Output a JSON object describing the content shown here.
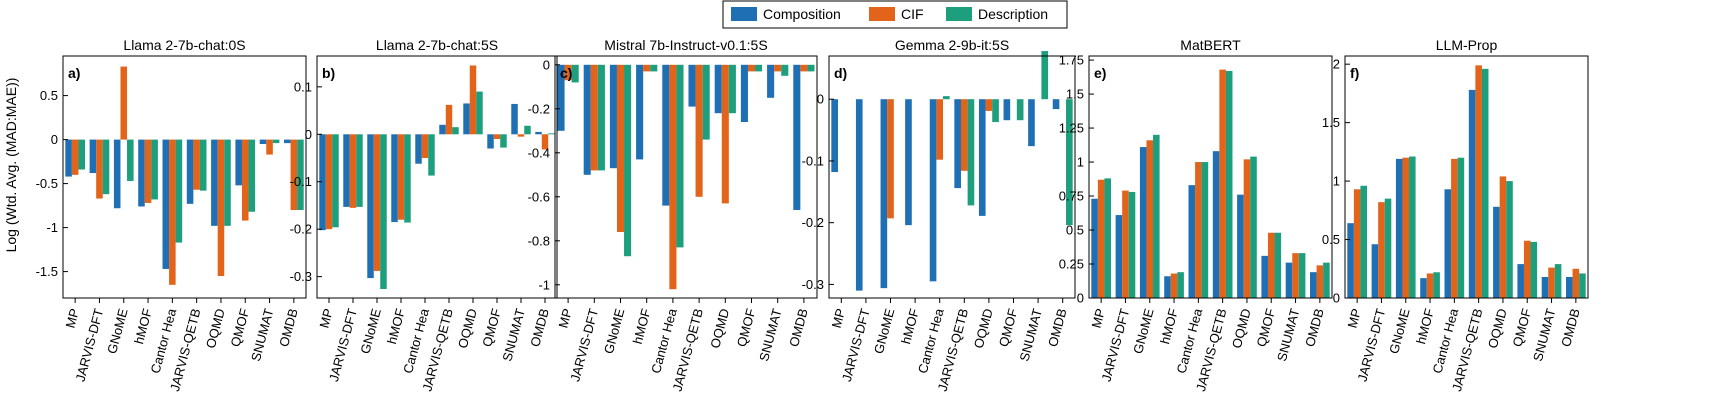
{
  "figure": {
    "ylabel": "Log (Wtd. Avg. (MAD:MAE))",
    "legend": [
      "Composition",
      "CIF",
      "Description"
    ],
    "colors": {
      "Composition": "#1f6fb4",
      "CIF": "#e2641a",
      "Description": "#1d9e7c"
    },
    "legend_placement": "top-center"
  },
  "chart_data": [
    {
      "type": "bar",
      "title": "Llama 2-7b-chat:0S",
      "panel_label": "a)",
      "categories": [
        "MP",
        "JARVIS-DFT",
        "GNoME",
        "hMOF",
        "Cantor Hea",
        "JARVIS-QETB",
        "OQMD",
        "QMOF",
        "SNUMAT",
        "OMDB"
      ],
      "ylim": [
        -1.8,
        0.95
      ],
      "yticks": [
        {
          "v": 0.5,
          "t": "0.5"
        },
        {
          "v": 0,
          "t": "0"
        },
        {
          "v": -0.5,
          "t": "-0.5"
        },
        {
          "v": -1,
          "t": "-1"
        },
        {
          "v": -1.5,
          "t": "-1.5"
        }
      ],
      "series": [
        {
          "name": "Composition",
          "values": [
            -0.42,
            -0.38,
            -0.78,
            -0.76,
            -1.47,
            -0.73,
            -0.98,
            -0.52,
            -0.05,
            -0.04
          ]
        },
        {
          "name": "CIF",
          "values": [
            -0.4,
            -0.67,
            0.83,
            -0.72,
            -1.65,
            -0.57,
            -1.55,
            -0.92,
            -0.17,
            -0.8
          ]
        },
        {
          "name": "Description",
          "values": [
            -0.34,
            -0.62,
            -0.47,
            -0.68,
            -1.17,
            -0.58,
            -0.98,
            -0.82,
            -0.04,
            -0.8
          ]
        }
      ]
    },
    {
      "type": "bar",
      "title": "Llama 2-7b-chat:5S",
      "panel_label": "b)",
      "categories": [
        "MP",
        "JARVIS-DFT",
        "GNoME",
        "hMOF",
        "Cantor Hea",
        "JARVIS-QETB",
        "OQMD",
        "QMOF",
        "SNUMAT",
        "OMDB"
      ],
      "ylim": [
        -0.345,
        0.165
      ],
      "yticks": [
        {
          "v": 0.1,
          "t": "0.1"
        },
        {
          "v": 0,
          "t": "0"
        },
        {
          "v": -0.1,
          "t": "-0.1"
        },
        {
          "v": -0.2,
          "t": "-0.2"
        },
        {
          "v": -0.3,
          "t": "-0.3"
        }
      ],
      "series": [
        {
          "name": "Composition",
          "values": [
            -0.202,
            -0.153,
            -0.303,
            -0.185,
            -0.062,
            0.02,
            0.065,
            -0.03,
            0.064,
            0.005
          ]
        },
        {
          "name": "CIF",
          "values": [
            -0.2,
            -0.155,
            -0.288,
            -0.18,
            -0.05,
            0.062,
            0.145,
            -0.01,
            -0.005,
            -0.032
          ]
        },
        {
          "name": "Description",
          "values": [
            -0.196,
            -0.153,
            -0.326,
            -0.186,
            -0.087,
            0.015,
            0.09,
            -0.028,
            0.018,
            0.002
          ]
        }
      ]
    },
    {
      "type": "bar",
      "title": "Mistral 7b-Instruct-v0.1:5S",
      "panel_label": "c)",
      "categories": [
        "MP",
        "JARVIS-DFT",
        "GNoME",
        "hMOF",
        "Cantor Hea",
        "JARVIS-QETB",
        "OQMD",
        "QMOF",
        "SNUMAT",
        "OMDB"
      ],
      "ylim": [
        -1.06,
        0.04
      ],
      "yticks": [
        {
          "v": 0,
          "t": "0"
        },
        {
          "v": -0.2,
          "t": "-0.2"
        },
        {
          "v": -0.4,
          "t": "-0.4"
        },
        {
          "v": -0.6,
          "t": "-0.6"
        },
        {
          "v": -0.8,
          "t": "-0.8"
        },
        {
          "v": -1,
          "t": "-1"
        }
      ],
      "series": [
        {
          "name": "Composition",
          "values": [
            -0.3,
            -0.5,
            -0.47,
            -0.43,
            -0.64,
            -0.19,
            -0.22,
            -0.26,
            -0.15,
            -0.66
          ]
        },
        {
          "name": "CIF",
          "values": [
            -0.07,
            -0.48,
            -0.76,
            -0.03,
            -1.02,
            -0.6,
            -0.63,
            -0.03,
            -0.03,
            -0.03
          ]
        },
        {
          "name": "Description",
          "values": [
            -0.08,
            -0.48,
            -0.87,
            -0.03,
            -0.83,
            -0.34,
            -0.22,
            -0.03,
            -0.05,
            -0.03
          ]
        }
      ]
    },
    {
      "type": "bar",
      "title": "Gemma 2-9b-it:5S",
      "panel_label": "d)",
      "categories": [
        "MP",
        "JARVIS-DFT",
        "GNoME",
        "hMOF",
        "Cantor Hea",
        "JARVIS-QETB",
        "OQMD",
        "QMOF",
        "SNUMAT",
        "OMDB"
      ],
      "ylim": [
        -0.322,
        0.07
      ],
      "yticks": [
        {
          "v": 0,
          "t": "0"
        },
        {
          "v": -0.1,
          "t": "-0.1"
        },
        {
          "v": -0.2,
          "t": "-0.2"
        },
        {
          "v": -0.3,
          "t": "-0.3"
        }
      ],
      "series": [
        {
          "name": "Composition",
          "values": [
            -0.118,
            -0.31,
            -0.306,
            -0.204,
            -0.295,
            -0.144,
            -0.189,
            -0.034,
            -0.076,
            -0.016
          ]
        },
        {
          "name": "CIF",
          "values": [
            0,
            0,
            -0.193,
            0,
            -0.098,
            -0.116,
            -0.019,
            0,
            0,
            0
          ]
        },
        {
          "name": "Description",
          "values": [
            0,
            0,
            0,
            0,
            0.005,
            -0.172,
            -0.037,
            -0.034,
            0.078,
            -0.204
          ]
        }
      ]
    },
    {
      "type": "bar",
      "title": "MatBERT",
      "panel_label": "e)",
      "categories": [
        "MP",
        "JARVIS-DFT",
        "GNoME",
        "hMOF",
        "Cantor Hea",
        "JARVIS-QETB",
        "OQMD",
        "QMOF",
        "SNUMAT",
        "OMDB"
      ],
      "ylim": [
        0,
        1.78
      ],
      "yticks": [
        {
          "v": 0,
          "t": "0"
        },
        {
          "v": 0.25,
          "t": "0.25"
        },
        {
          "v": 0.5,
          "t": "0.5"
        },
        {
          "v": 0.75,
          "t": "0.75"
        },
        {
          "v": 1,
          "t": "1"
        },
        {
          "v": 1.25,
          "t": "1.25"
        },
        {
          "v": 1.5,
          "t": "1.5"
        },
        {
          "v": 1.75,
          "t": "1.75"
        }
      ],
      "series": [
        {
          "name": "Composition",
          "values": [
            0.73,
            0.61,
            1.11,
            0.16,
            0.83,
            1.08,
            0.76,
            0.31,
            0.26,
            0.19
          ]
        },
        {
          "name": "CIF",
          "values": [
            0.87,
            0.79,
            1.16,
            0.18,
            1.0,
            1.68,
            1.02,
            0.48,
            0.33,
            0.24
          ]
        },
        {
          "name": "Description",
          "values": [
            0.88,
            0.78,
            1.2,
            0.19,
            1.0,
            1.67,
            1.04,
            0.48,
            0.33,
            0.26
          ]
        }
      ]
    },
    {
      "type": "bar",
      "title": "LLM-Prop",
      "panel_label": "f)",
      "categories": [
        "MP",
        "JARVIS-DFT",
        "GNoME",
        "hMOF",
        "Cantor Hea",
        "JARVIS-QETB",
        "OQMD",
        "QMOF",
        "SNUMAT",
        "OMDB"
      ],
      "ylim": [
        0,
        2.07
      ],
      "yticks": [
        {
          "v": 0,
          "t": "0"
        },
        {
          "v": 0.5,
          "t": "0.5"
        },
        {
          "v": 1,
          "t": "1"
        },
        {
          "v": 1.5,
          "t": "1.5"
        },
        {
          "v": 2,
          "t": "2"
        }
      ],
      "series": [
        {
          "name": "Composition",
          "values": [
            0.64,
            0.46,
            1.19,
            0.17,
            0.93,
            1.78,
            0.78,
            0.29,
            0.18,
            0.18
          ]
        },
        {
          "name": "CIF",
          "values": [
            0.93,
            0.82,
            1.2,
            0.21,
            1.19,
            1.99,
            1.04,
            0.49,
            0.26,
            0.25
          ]
        },
        {
          "name": "Description",
          "values": [
            0.96,
            0.85,
            1.21,
            0.22,
            1.2,
            1.96,
            1.0,
            0.48,
            0.29,
            0.21
          ]
        }
      ]
    }
  ]
}
